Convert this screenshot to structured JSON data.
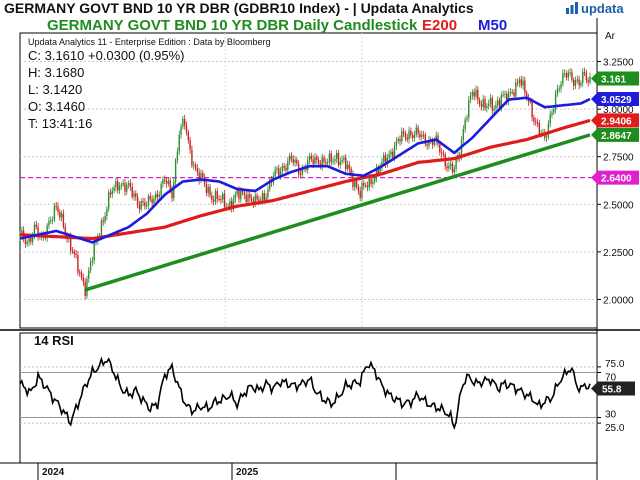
{
  "header": {
    "title": "GERMANY GOVT BND 10 YR DBR (GDBR10 Index) - | Updata Analytics",
    "brand": "updata",
    "subtitle": "GERMANY GOVT BND 10 YR DBR Daily Candlestick",
    "legend_e200": "E200",
    "legend_m50": "M50",
    "edition": "Updata Analytics 11 - Enterprise Edition : Data by Bloomberg",
    "axis_unit": "Ar"
  },
  "ohlc": {
    "close": "C: 3.1610  +0.0300 (0.95%)",
    "high": "H: 3.1680",
    "low": "L: 3.1420",
    "open": "O: 3.1460",
    "time": "T: 13:41:16"
  },
  "rsi": {
    "title": "14 RSI"
  },
  "colors": {
    "up": "#2e8b2e",
    "down": "#cc1f1f",
    "e200": "#e01b1b",
    "m50": "#1c1cdc",
    "trend": "#1e8c1e",
    "support": "#e020d0",
    "brand": "#1a5fa8"
  },
  "chart_data": [
    {
      "type": "candlestick",
      "title": "GERMANY GOVT BND 10 YR DBR Daily Candlestick",
      "ylim": [
        1.85,
        3.4
      ],
      "yticks": [
        2.0,
        2.25,
        2.5,
        2.75,
        3.0,
        3.25
      ],
      "ytick_labels": [
        "2.0000",
        "2.2500",
        "2.5000",
        "2.7500",
        "3.0000",
        "3.2500"
      ],
      "x_labels": [
        "2024",
        "2025"
      ],
      "grid": true,
      "price_path": [
        [
          0,
          2.33
        ],
        [
          4,
          2.3
        ],
        [
          8,
          2.38
        ],
        [
          12,
          2.3
        ],
        [
          16,
          2.42
        ],
        [
          20,
          2.47
        ],
        [
          24,
          2.4
        ],
        [
          28,
          2.28
        ],
        [
          32,
          2.16
        ],
        [
          36,
          2.07
        ],
        [
          40,
          2.22
        ],
        [
          45,
          2.4
        ],
        [
          50,
          2.55
        ],
        [
          55,
          2.62
        ],
        [
          60,
          2.58
        ],
        [
          65,
          2.52
        ],
        [
          70,
          2.49
        ],
        [
          75,
          2.55
        ],
        [
          80,
          2.62
        ],
        [
          84,
          2.56
        ],
        [
          88,
          2.88
        ],
        [
          91,
          2.92
        ],
        [
          94,
          2.78
        ],
        [
          98,
          2.66
        ],
        [
          102,
          2.6
        ],
        [
          106,
          2.55
        ],
        [
          110,
          2.52
        ],
        [
          115,
          2.5
        ],
        [
          120,
          2.54
        ],
        [
          125,
          2.56
        ],
        [
          130,
          2.5
        ],
        [
          135,
          2.55
        ],
        [
          140,
          2.64
        ],
        [
          145,
          2.7
        ],
        [
          150,
          2.73
        ],
        [
          155,
          2.68
        ],
        [
          160,
          2.72
        ],
        [
          165,
          2.74
        ],
        [
          170,
          2.71
        ],
        [
          175,
          2.76
        ],
        [
          180,
          2.7
        ],
        [
          185,
          2.62
        ],
        [
          188,
          2.56
        ],
        [
          192,
          2.6
        ],
        [
          196,
          2.66
        ],
        [
          200,
          2.7
        ],
        [
          205,
          2.78
        ],
        [
          210,
          2.84
        ],
        [
          215,
          2.88
        ],
        [
          220,
          2.86
        ],
        [
          225,
          2.84
        ],
        [
          230,
          2.82
        ],
        [
          234,
          2.75
        ],
        [
          237,
          2.7
        ],
        [
          240,
          2.67
        ],
        [
          243,
          2.78
        ],
        [
          246,
          2.96
        ],
        [
          250,
          3.08
        ],
        [
          254,
          3.05
        ],
        [
          258,
          3.02
        ],
        [
          262,
          3.0
        ],
        [
          266,
          3.08
        ],
        [
          270,
          3.05
        ],
        [
          273,
          3.1
        ],
        [
          276,
          3.18
        ],
        [
          279,
          3.08
        ],
        [
          283,
          2.98
        ],
        [
          287,
          2.9
        ],
        [
          290,
          2.82
        ],
        [
          293,
          2.96
        ],
        [
          296,
          3.08
        ],
        [
          300,
          3.15
        ],
        [
          303,
          3.2
        ],
        [
          306,
          3.16
        ],
        [
          309,
          3.12
        ],
        [
          312,
          3.18
        ],
        [
          315,
          3.161
        ]
      ],
      "series": [
        {
          "name": "E200",
          "values": [
            [
              0,
              2.34
            ],
            [
              20,
              2.33
            ],
            [
              40,
              2.32
            ],
            [
              60,
              2.35
            ],
            [
              80,
              2.38
            ],
            [
              100,
              2.44
            ],
            [
              120,
              2.49
            ],
            [
              140,
              2.52
            ],
            [
              160,
              2.57
            ],
            [
              180,
              2.62
            ],
            [
              200,
              2.66
            ],
            [
              220,
              2.72
            ],
            [
              240,
              2.74
            ],
            [
              260,
              2.8
            ],
            [
              280,
              2.84
            ],
            [
              300,
              2.9
            ],
            [
              315,
              2.9406
            ]
          ]
        },
        {
          "name": "M50",
          "values": [
            [
              0,
              2.32
            ],
            [
              10,
              2.34
            ],
            [
              20,
              2.36
            ],
            [
              30,
              2.33
            ],
            [
              40,
              2.3
            ],
            [
              50,
              2.34
            ],
            [
              60,
              2.38
            ],
            [
              70,
              2.45
            ],
            [
              80,
              2.55
            ],
            [
              90,
              2.62
            ],
            [
              100,
              2.63
            ],
            [
              110,
              2.62
            ],
            [
              120,
              2.58
            ],
            [
              130,
              2.57
            ],
            [
              140,
              2.63
            ],
            [
              150,
              2.67
            ],
            [
              160,
              2.7
            ],
            [
              170,
              2.7
            ],
            [
              180,
              2.66
            ],
            [
              190,
              2.65
            ],
            [
              200,
              2.7
            ],
            [
              210,
              2.76
            ],
            [
              220,
              2.82
            ],
            [
              230,
              2.84
            ],
            [
              240,
              2.77
            ],
            [
              250,
              2.85
            ],
            [
              260,
              2.95
            ],
            [
              270,
              3.05
            ],
            [
              280,
              3.06
            ],
            [
              290,
              3.01
            ],
            [
              300,
              3.02
            ],
            [
              310,
              3.03
            ],
            [
              315,
              3.0529
            ]
          ]
        }
      ],
      "trendline": [
        [
          36,
          2.05
        ],
        [
          315,
          2.8647
        ]
      ],
      "support_level": 2.64,
      "price_tags": [
        {
          "label": "3.161",
          "value": 3.161,
          "color": "#1e8c1e"
        },
        {
          "label": "3.0529",
          "value": 3.0529,
          "color": "#1c1cdc"
        },
        {
          "label": "2.9406",
          "value": 2.9406,
          "color": "#e01b1b"
        },
        {
          "label": "2.8647",
          "value": 2.8647,
          "color": "#1e8c1e"
        },
        {
          "label": "2.6400",
          "value": 2.64,
          "color": "#e020d0"
        }
      ]
    },
    {
      "type": "line",
      "title": "14 RSI",
      "ylim": [
        10,
        90
      ],
      "yticks": [
        25,
        30,
        70,
        75
      ],
      "ytick_labels": [
        "25.0",
        "30",
        "70",
        "75.0"
      ],
      "last_value": 55.8,
      "series": [
        {
          "name": "RSI",
          "values": [
            [
              0,
              60
            ],
            [
              6,
              52
            ],
            [
              10,
              66
            ],
            [
              14,
              58
            ],
            [
              18,
              48
            ],
            [
              22,
              40
            ],
            [
              25,
              33
            ],
            [
              28,
              26
            ],
            [
              32,
              42
            ],
            [
              36,
              58
            ],
            [
              40,
              70
            ],
            [
              44,
              76
            ],
            [
              48,
              82
            ],
            [
              52,
              70
            ],
            [
              56,
              56
            ],
            [
              60,
              50
            ],
            [
              64,
              54
            ],
            [
              68,
              45
            ],
            [
              72,
              38
            ],
            [
              76,
              42
            ],
            [
              80,
              68
            ],
            [
              84,
              74
            ],
            [
              88,
              56
            ],
            [
              92,
              40
            ],
            [
              96,
              36
            ],
            [
              100,
              40
            ],
            [
              104,
              38
            ],
            [
              108,
              44
            ],
            [
              112,
              46
            ],
            [
              116,
              50
            ],
            [
              120,
              42
            ],
            [
              124,
              52
            ],
            [
              128,
              58
            ],
            [
              132,
              54
            ],
            [
              136,
              60
            ],
            [
              140,
              56
            ],
            [
              144,
              62
            ],
            [
              148,
              60
            ],
            [
              152,
              58
            ],
            [
              156,
              60
            ],
            [
              160,
              64
            ],
            [
              164,
              52
            ],
            [
              168,
              46
            ],
            [
              172,
              42
            ],
            [
              176,
              48
            ],
            [
              180,
              58
            ],
            [
              184,
              60
            ],
            [
              188,
              62
            ],
            [
              192,
              78
            ],
            [
              196,
              72
            ],
            [
              200,
              58
            ],
            [
              204,
              50
            ],
            [
              208,
              46
            ],
            [
              212,
              42
            ],
            [
              216,
              44
            ],
            [
              220,
              50
            ],
            [
              224,
              44
            ],
            [
              228,
              40
            ],
            [
              232,
              38
            ],
            [
              236,
              34
            ],
            [
              238,
              30
            ],
            [
              240,
              22
            ],
            [
              242,
              36
            ],
            [
              244,
              56
            ],
            [
              246,
              64
            ],
            [
              248,
              66
            ],
            [
              252,
              60
            ],
            [
              256,
              62
            ],
            [
              260,
              64
            ],
            [
              264,
              56
            ],
            [
              268,
              60
            ],
            [
              272,
              58
            ],
            [
              276,
              54
            ],
            [
              280,
              50
            ],
            [
              284,
              46
            ],
            [
              286,
              40
            ],
            [
              290,
              44
            ],
            [
              294,
              48
            ],
            [
              298,
              62
            ],
            [
              302,
              70
            ],
            [
              304,
              74
            ],
            [
              306,
              68
            ],
            [
              308,
              58
            ],
            [
              310,
              54
            ],
            [
              312,
              60
            ],
            [
              315,
              55.8
            ]
          ]
        }
      ]
    }
  ]
}
